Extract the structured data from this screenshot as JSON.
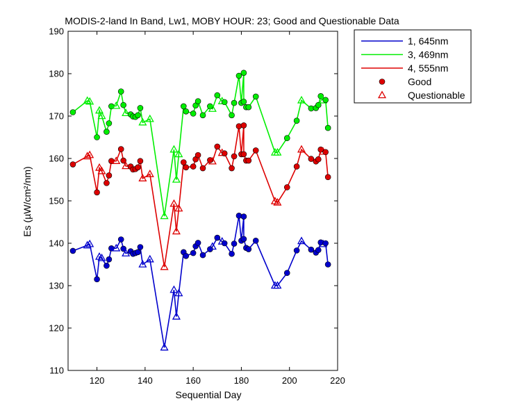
{
  "chart_data": {
    "type": "line",
    "title": "MODIS-2-land In Band,  Lw1, MOBY HOUR: 23;  Good and Questionable Data",
    "xlabel": "Sequential Day",
    "ylabel": "Es (µW/cm²/nm)",
    "xlim": [
      108,
      220
    ],
    "ylim": [
      110,
      190
    ],
    "xticks": [
      120,
      140,
      160,
      180,
      200,
      220
    ],
    "yticks": [
      110,
      120,
      130,
      140,
      150,
      160,
      170,
      180,
      190
    ],
    "grid": false,
    "legend_position": "outside-top-right",
    "series": [
      {
        "name": "1, 645nm",
        "color": "#0000cc",
        "points": [
          [
            110,
            138.2,
            "g"
          ],
          [
            116,
            139.5,
            "q"
          ],
          [
            117,
            139.8,
            "q"
          ],
          [
            120,
            131.5,
            "g"
          ],
          [
            121,
            136.8,
            "q"
          ],
          [
            122,
            136.5,
            "q"
          ],
          [
            124,
            134.7,
            "g"
          ],
          [
            125,
            136.2,
            "g"
          ],
          [
            126,
            138.8,
            "g"
          ],
          [
            128,
            138.8,
            "q"
          ],
          [
            130,
            140.9,
            "g"
          ],
          [
            131,
            138.7,
            "g"
          ],
          [
            132,
            137.6,
            "q"
          ],
          [
            134,
            138.1,
            "g"
          ],
          [
            135,
            137.5,
            "g"
          ],
          [
            136,
            137.7,
            "g"
          ],
          [
            137,
            137.9,
            "g"
          ],
          [
            138,
            139.1,
            "g"
          ],
          [
            139,
            135.0,
            "q"
          ],
          [
            142,
            136.2,
            "q"
          ],
          [
            148,
            115.4,
            "q"
          ],
          [
            152,
            129.0,
            "q"
          ],
          [
            153,
            122.7,
            "q"
          ],
          [
            154,
            128.2,
            "q"
          ],
          [
            156,
            137.9,
            "g"
          ],
          [
            157,
            137.0,
            "g"
          ],
          [
            160,
            137.7,
            "g"
          ],
          [
            161,
            139.3,
            "g"
          ],
          [
            162,
            140.1,
            "g"
          ],
          [
            164,
            137.2,
            "g"
          ],
          [
            167,
            138.6,
            "g"
          ],
          [
            168,
            139.2,
            "q"
          ],
          [
            170,
            141.3,
            "g"
          ],
          [
            172,
            140.4,
            "q"
          ],
          [
            173,
            140.0,
            "g"
          ],
          [
            176,
            137.5,
            "g"
          ],
          [
            177,
            139.9,
            "g"
          ],
          [
            179,
            146.5,
            "g"
          ],
          [
            180,
            140.6,
            "g"
          ],
          [
            181,
            146.3,
            "g"
          ],
          [
            181,
            141.0,
            "g"
          ],
          [
            182,
            138.9,
            "g"
          ],
          [
            183,
            138.6,
            "g"
          ],
          [
            186,
            140.6,
            "g"
          ],
          [
            194,
            130.0,
            "q"
          ],
          [
            195,
            130.0,
            "q"
          ],
          [
            199,
            133.0,
            "g"
          ],
          [
            203,
            138.3,
            "g"
          ],
          [
            205,
            140.5,
            "q"
          ],
          [
            209,
            138.5,
            "g"
          ],
          [
            211,
            137.8,
            "g"
          ],
          [
            212,
            138.4,
            "g"
          ],
          [
            213,
            140.2,
            "g"
          ],
          [
            214,
            139.8,
            "q"
          ],
          [
            215,
            140.0,
            "g"
          ],
          [
            216,
            135.0,
            "g"
          ]
        ]
      },
      {
        "name": "3, 469nm",
        "color": "#00ee00",
        "points": [
          [
            110,
            170.9,
            "g"
          ],
          [
            116,
            173.6,
            "q"
          ],
          [
            117,
            173.4,
            "q"
          ],
          [
            120,
            165.0,
            "g"
          ],
          [
            121,
            171.3,
            "q"
          ],
          [
            122,
            170.0,
            "q"
          ],
          [
            124,
            166.3,
            "g"
          ],
          [
            125,
            168.3,
            "g"
          ],
          [
            126,
            172.3,
            "g"
          ],
          [
            128,
            172.4,
            "q"
          ],
          [
            130,
            175.8,
            "g"
          ],
          [
            131,
            172.6,
            "g"
          ],
          [
            132,
            170.7,
            "q"
          ],
          [
            134,
            170.4,
            "g"
          ],
          [
            135,
            169.9,
            "g"
          ],
          [
            136,
            169.8,
            "g"
          ],
          [
            137,
            170.2,
            "g"
          ],
          [
            138,
            171.9,
            "g"
          ],
          [
            139,
            168.5,
            "q"
          ],
          [
            142,
            169.3,
            "q"
          ],
          [
            148,
            146.4,
            "q"
          ],
          [
            152,
            162.1,
            "q"
          ],
          [
            153,
            155.0,
            "q"
          ],
          [
            154,
            161.0,
            "q"
          ],
          [
            156,
            172.3,
            "g"
          ],
          [
            157,
            171.1,
            "g"
          ],
          [
            160,
            170.6,
            "g"
          ],
          [
            161,
            172.5,
            "g"
          ],
          [
            162,
            173.5,
            "g"
          ],
          [
            164,
            170.2,
            "g"
          ],
          [
            167,
            172.3,
            "g"
          ],
          [
            168,
            171.7,
            "q"
          ],
          [
            170,
            174.9,
            "g"
          ],
          [
            172,
            173.5,
            "q"
          ],
          [
            173,
            173.3,
            "g"
          ],
          [
            176,
            170.2,
            "g"
          ],
          [
            177,
            173.1,
            "g"
          ],
          [
            179,
            179.5,
            "g"
          ],
          [
            180,
            173.1,
            "g"
          ],
          [
            181,
            180.2,
            "g"
          ],
          [
            181,
            173.4,
            "g"
          ],
          [
            182,
            172.1,
            "g"
          ],
          [
            183,
            172.1,
            "g"
          ],
          [
            186,
            174.6,
            "g"
          ],
          [
            194,
            161.4,
            "q"
          ],
          [
            195,
            161.4,
            "q"
          ],
          [
            199,
            164.8,
            "g"
          ],
          [
            203,
            168.9,
            "g"
          ],
          [
            205,
            173.7,
            "q"
          ],
          [
            209,
            171.8,
            "g"
          ],
          [
            211,
            171.9,
            "g"
          ],
          [
            212,
            172.6,
            "g"
          ],
          [
            213,
            174.7,
            "g"
          ],
          [
            214,
            173.7,
            "q"
          ],
          [
            215,
            173.8,
            "g"
          ],
          [
            216,
            167.2,
            "g"
          ]
        ]
      },
      {
        "name": "4, 555nm",
        "color": "#dd0000",
        "points": [
          [
            110,
            158.6,
            "g"
          ],
          [
            116,
            160.5,
            "q"
          ],
          [
            117,
            160.8,
            "q"
          ],
          [
            120,
            152.0,
            "g"
          ],
          [
            121,
            157.8,
            "q"
          ],
          [
            122,
            157.0,
            "q"
          ],
          [
            124,
            154.2,
            "g"
          ],
          [
            125,
            156.0,
            "g"
          ],
          [
            126,
            159.4,
            "g"
          ],
          [
            128,
            159.4,
            "q"
          ],
          [
            130,
            162.2,
            "g"
          ],
          [
            131,
            159.5,
            "g"
          ],
          [
            132,
            158.2,
            "q"
          ],
          [
            134,
            158.1,
            "g"
          ],
          [
            135,
            157.4,
            "g"
          ],
          [
            136,
            157.5,
            "g"
          ],
          [
            137,
            157.9,
            "g"
          ],
          [
            138,
            159.4,
            "g"
          ],
          [
            139,
            155.3,
            "q"
          ],
          [
            142,
            156.3,
            "q"
          ],
          [
            148,
            134.4,
            "q"
          ],
          [
            152,
            149.3,
            "q"
          ],
          [
            153,
            142.8,
            "q"
          ],
          [
            154,
            148.2,
            "q"
          ],
          [
            156,
            159.1,
            "g"
          ],
          [
            157,
            157.9,
            "g"
          ],
          [
            160,
            158.1,
            "g"
          ],
          [
            161,
            159.8,
            "g"
          ],
          [
            162,
            160.8,
            "g"
          ],
          [
            164,
            157.7,
            "g"
          ],
          [
            167,
            159.6,
            "g"
          ],
          [
            168,
            159.3,
            "q"
          ],
          [
            170,
            162.8,
            "g"
          ],
          [
            172,
            161.3,
            "q"
          ],
          [
            173,
            161.2,
            "g"
          ],
          [
            176,
            157.7,
            "g"
          ],
          [
            177,
            160.5,
            "g"
          ],
          [
            179,
            167.6,
            "g"
          ],
          [
            180,
            161.0,
            "g"
          ],
          [
            181,
            167.8,
            "g"
          ],
          [
            181,
            161.0,
            "g"
          ],
          [
            182,
            159.5,
            "g"
          ],
          [
            183,
            159.5,
            "g"
          ],
          [
            186,
            161.9,
            "g"
          ],
          [
            194,
            149.9,
            "q"
          ],
          [
            195,
            149.6,
            "q"
          ],
          [
            199,
            153.2,
            "g"
          ],
          [
            203,
            158.1,
            "g"
          ],
          [
            205,
            162.1,
            "q"
          ],
          [
            209,
            159.9,
            "g"
          ],
          [
            211,
            159.3,
            "g"
          ],
          [
            212,
            159.8,
            "g"
          ],
          [
            213,
            162.1,
            "g"
          ],
          [
            214,
            161.6,
            "q"
          ],
          [
            215,
            161.5,
            "g"
          ],
          [
            216,
            155.6,
            "g"
          ]
        ]
      }
    ],
    "legend": [
      {
        "label": "1, 645nm",
        "kind": "line",
        "color": "#0000cc"
      },
      {
        "label": "3, 469nm",
        "kind": "line",
        "color": "#00ee00"
      },
      {
        "label": "4, 555nm",
        "kind": "line",
        "color": "#dd0000"
      },
      {
        "label": "Good",
        "kind": "dot",
        "color": "#dd0000"
      },
      {
        "label": "Questionable",
        "kind": "triangle",
        "color": "#dd0000"
      }
    ]
  }
}
